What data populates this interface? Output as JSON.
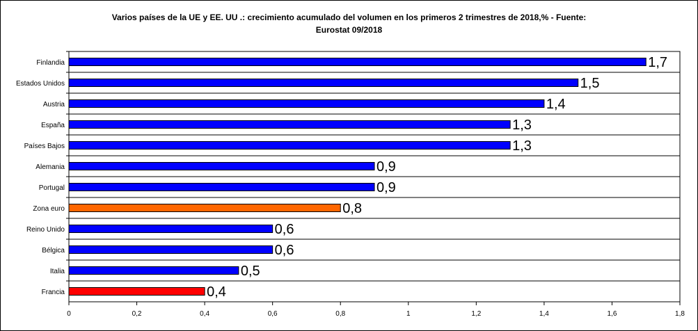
{
  "chart_data": {
    "type": "bar",
    "orientation": "horizontal",
    "title": "Varios países de la UE y EE. UU .: crecimiento acumulado del volumen en los primeros 2 trimestres de 2018,% - Fuente:\nEurostat 09/2018",
    "xlabel": "",
    "ylabel": "",
    "xlim": [
      0,
      1.8
    ],
    "grid": "horizontal",
    "legend": "none",
    "x_ticks": [
      "0",
      "0,2",
      "0,4",
      "0,6",
      "0,8",
      "1",
      "1,2",
      "1,4",
      "1,6",
      "1,8"
    ],
    "categories": [
      "Finlandia",
      "Estados Unidos",
      "Austria",
      "España",
      "Países Bajos",
      "Alemania",
      "Portugal",
      "Zona euro",
      "Reino Unido",
      "Bélgica",
      "Italia",
      "Francia"
    ],
    "values": [
      1.7,
      1.5,
      1.4,
      1.3,
      1.3,
      0.9,
      0.9,
      0.8,
      0.6,
      0.6,
      0.5,
      0.4
    ],
    "value_labels": [
      "1,7",
      "1,5",
      "1,4",
      "1,3",
      "1,3",
      "0,9",
      "0,9",
      "0,8",
      "0,6",
      "0,6",
      "0,5",
      "0,4"
    ],
    "bar_colors": [
      "#0000ff",
      "#0000ff",
      "#0000ff",
      "#0000ff",
      "#0000ff",
      "#0000ff",
      "#0000ff",
      "#ff6600",
      "#0000ff",
      "#0000ff",
      "#0000ff",
      "#ff0000"
    ]
  }
}
